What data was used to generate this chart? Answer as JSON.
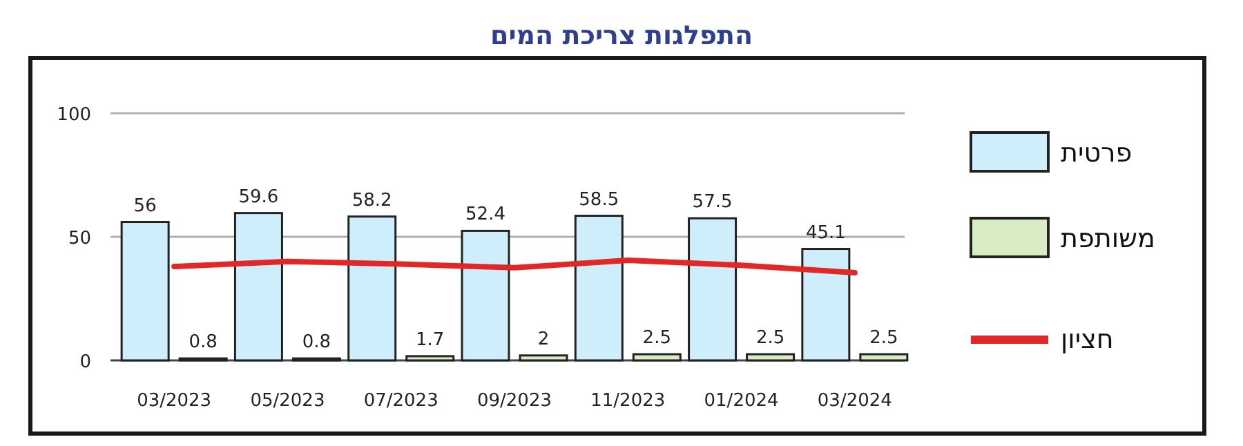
{
  "chart_data": {
    "type": "bar",
    "title": "התפלגות צריכת המים",
    "categories": [
      "03/2023",
      "05/2023",
      "07/2023",
      "09/2023",
      "11/2023",
      "01/2024",
      "03/2024"
    ],
    "series": [
      {
        "name": "פרטית",
        "color": "#cdeefa",
        "values": [
          56,
          59.6,
          58.2,
          52.4,
          58.5,
          57.5,
          45.1
        ],
        "value_labels": [
          "56",
          "59.6",
          "58.2",
          "52.4",
          "58.5",
          "57.5",
          "45.1"
        ]
      },
      {
        "name": "משותפת",
        "color": "#d8ecc4",
        "values": [
          0.8,
          0.8,
          1.7,
          2,
          2.5,
          2.5,
          2.5
        ],
        "value_labels": [
          "0.8",
          "0.8",
          "1.7",
          "2",
          "2.5",
          "2.5",
          "2.5"
        ]
      },
      {
        "name": "חציון",
        "type": "line",
        "color": "#e32626",
        "values": [
          38,
          40,
          39,
          37.5,
          40.5,
          38.5,
          35.5
        ]
      }
    ],
    "ylim": [
      0,
      100
    ],
    "yticks": [
      0,
      50,
      100
    ],
    "grid": "y",
    "legend": "right",
    "marker": "none",
    "line_style": "solid"
  }
}
